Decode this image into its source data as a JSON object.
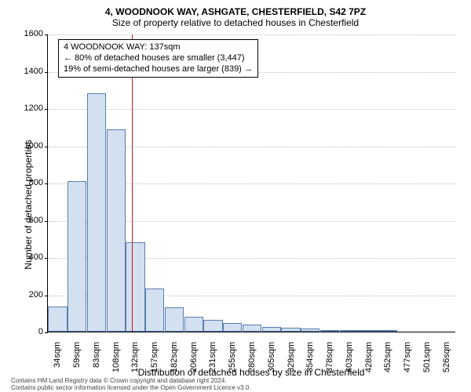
{
  "title_line1": "4, WOODNOOK WAY, ASHGATE, CHESTERFIELD, S42 7PZ",
  "title_line2": "Size of property relative to detached houses in Chesterfield",
  "ylabel": "Number of detached properties",
  "xlabel": "Distribution of detached houses by size in Chesterfield",
  "footer_line1": "Contains HM Land Registry data © Crown copyright and database right 2024.",
  "footer_line2": "Contains public sector information licensed under the Open Government Licence v3.0.",
  "histogram": {
    "type": "histogram",
    "ylim": [
      0,
      1600
    ],
    "ytick_step": 200,
    "yticks": [
      0,
      200,
      400,
      600,
      800,
      1000,
      1200,
      1400,
      1600
    ],
    "bar_fill": "#d3e0f0",
    "bar_border": "#5a7cb0",
    "grid_color": "#c0c0c0",
    "background": "#ffffff",
    "marker_color": "#c02020",
    "categories": [
      "34sqm",
      "59sqm",
      "83sqm",
      "108sqm",
      "132sqm",
      "157sqm",
      "182sqm",
      "206sqm",
      "231sqm",
      "255sqm",
      "280sqm",
      "305sqm",
      "329sqm",
      "354sqm",
      "378sqm",
      "403sqm",
      "428sqm",
      "452sqm",
      "477sqm",
      "501sqm",
      "526sqm"
    ],
    "values": [
      135,
      810,
      1280,
      1085,
      480,
      230,
      130,
      80,
      65,
      45,
      40,
      25,
      20,
      15,
      10,
      10,
      10,
      10,
      0,
      0,
      0
    ],
    "marker_index": 4,
    "label_fontsize": 11
  },
  "annotation": {
    "line1": "4 WOODNOOK WAY: 137sqm",
    "line2": "← 80% of detached houses are smaller (3,447)",
    "line3": "19% of semi-detached houses are larger (839) →"
  }
}
